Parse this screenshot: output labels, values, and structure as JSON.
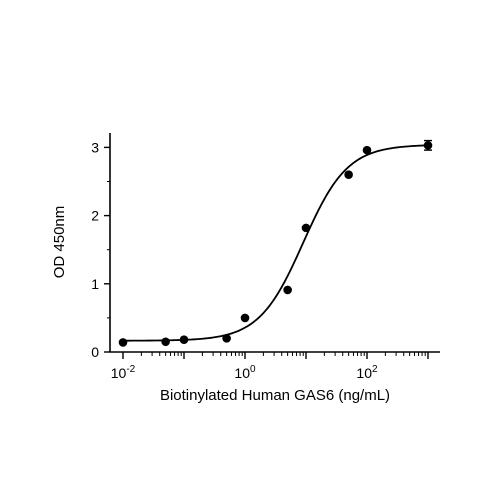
{
  "chart_data": {
    "type": "scatter",
    "xlabel": "Biotinylated Human GAS6 (ng/mL)",
    "ylabel": "OD 450nm",
    "x_scale": "log10",
    "xlim": [
      0.01,
      1000
    ],
    "ylim": [
      0,
      3.2
    ],
    "x_ticks": [
      {
        "base": "10",
        "exp": "-2",
        "value": 0.01
      },
      {
        "base": "10",
        "exp": "0",
        "value": 1
      },
      {
        "base": "10",
        "exp": "2",
        "value": 100
      }
    ],
    "y_ticks": [
      {
        "label": "0",
        "value": 0
      },
      {
        "label": "1",
        "value": 1
      },
      {
        "label": "2",
        "value": 2
      },
      {
        "label": "3",
        "value": 3
      }
    ],
    "grid": false,
    "series": [
      {
        "marker_color": "#000000",
        "points": [
          {
            "x": 0.01,
            "y": 0.14
          },
          {
            "x": 0.05,
            "y": 0.15
          },
          {
            "x": 0.1,
            "y": 0.18
          },
          {
            "x": 0.5,
            "y": 0.2
          },
          {
            "x": 1.0,
            "y": 0.5
          },
          {
            "x": 5.0,
            "y": 0.91
          },
          {
            "x": 10.0,
            "y": 1.82
          },
          {
            "x": 50.0,
            "y": 2.6
          },
          {
            "x": 100.0,
            "y": 2.96
          },
          {
            "x": 1000.0,
            "y": 3.03,
            "error": 0.07
          }
        ]
      }
    ],
    "fit_curve": {
      "type": "4PL",
      "bottom": 0.165,
      "top": 3.04,
      "ec50": 9.0,
      "hill": 1.2,
      "color": "#000000"
    }
  }
}
